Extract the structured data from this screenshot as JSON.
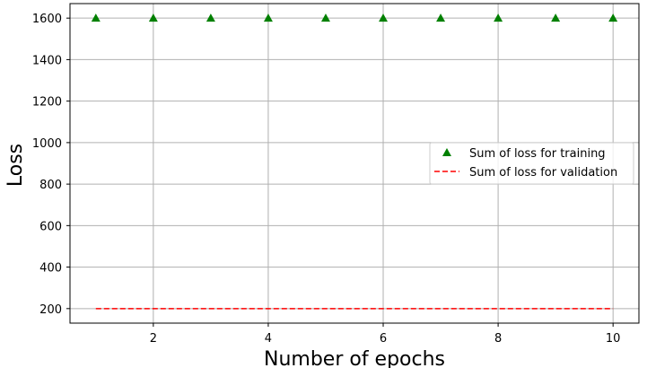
{
  "chart_data": {
    "type": "scatter",
    "title": "",
    "xlabel": "Number of epochs",
    "ylabel": "Loss",
    "xlim": [
      0.55,
      10.45
    ],
    "ylim": [
      130,
      1670
    ],
    "xticks": [
      2,
      4,
      6,
      8,
      10
    ],
    "yticks": [
      200,
      400,
      600,
      800,
      1000,
      1200,
      1400,
      1600
    ],
    "grid": true,
    "legend_position": "center-right",
    "x": [
      1,
      2,
      3,
      4,
      5,
      6,
      7,
      8,
      9,
      10
    ],
    "series": [
      {
        "name": "Sum of loss for training",
        "mark": "triangle",
        "color": "#008000",
        "values": [
          1600,
          1600,
          1600,
          1600,
          1600,
          1600,
          1600,
          1600,
          1600,
          1600
        ]
      },
      {
        "name": "Sum of loss for validation",
        "mark": "dashed-line",
        "color": "#ff0000",
        "values": [
          200,
          200,
          200,
          200,
          200,
          200,
          200,
          200,
          200,
          200
        ]
      }
    ]
  }
}
